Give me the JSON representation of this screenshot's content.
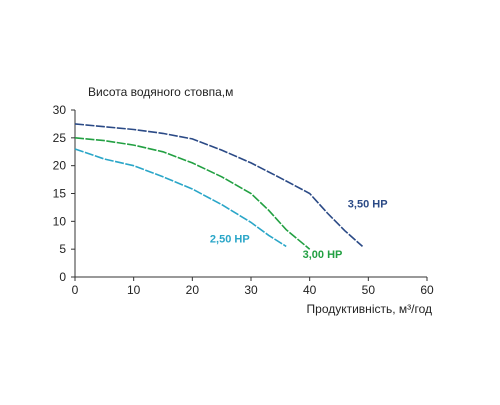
{
  "chart_data": {
    "type": "line",
    "title": "",
    "ylabel": "Висота водяного стовпа,м",
    "xlabel": "Продуктивність, м³/год",
    "xlim": [
      0,
      60
    ],
    "ylim": [
      0,
      30
    ],
    "x_ticks": [
      "0",
      "10",
      "20",
      "30",
      "40",
      "50",
      "60"
    ],
    "y_ticks": [
      "0",
      "5",
      "10",
      "15",
      "20",
      "25",
      "30"
    ],
    "x_tick_values": [
      0,
      10,
      20,
      30,
      40,
      50,
      60
    ],
    "y_tick_values": [
      0,
      5,
      10,
      15,
      20,
      25,
      30
    ],
    "grid": false,
    "series": [
      {
        "name": "3,50 HP",
        "color": "#2b4a86",
        "style": "dashed",
        "label_anchor": [
          46.5,
          12.5
        ],
        "points": [
          [
            0,
            27.5
          ],
          [
            5,
            27
          ],
          [
            10,
            26.5
          ],
          [
            15,
            25.8
          ],
          [
            20,
            24.8
          ],
          [
            25,
            22.8
          ],
          [
            30,
            20.5
          ],
          [
            35,
            17.8
          ],
          [
            40,
            15
          ],
          [
            43,
            11.5
          ],
          [
            46,
            8.3
          ],
          [
            49,
            5.5
          ]
        ]
      },
      {
        "name": "3,00 HP",
        "color": "#22a042",
        "style": "dashed",
        "label_anchor": [
          38.8,
          3.4
        ],
        "points": [
          [
            0,
            25
          ],
          [
            5,
            24.5
          ],
          [
            10,
            23.7
          ],
          [
            15,
            22.5
          ],
          [
            20,
            20.5
          ],
          [
            25,
            18
          ],
          [
            30,
            15
          ],
          [
            33,
            12
          ],
          [
            36,
            8.5
          ],
          [
            40,
            5
          ]
        ]
      },
      {
        "name": "2,50 HP",
        "color": "#2aa6c8",
        "style": "dashed",
        "label_anchor": [
          23,
          6.2
        ],
        "points": [
          [
            0,
            23
          ],
          [
            5,
            21.2
          ],
          [
            10,
            20
          ],
          [
            15,
            18
          ],
          [
            20,
            15.8
          ],
          [
            25,
            13
          ],
          [
            30,
            9.8
          ],
          [
            33,
            7.5
          ],
          [
            36,
            5.5
          ]
        ]
      }
    ]
  }
}
